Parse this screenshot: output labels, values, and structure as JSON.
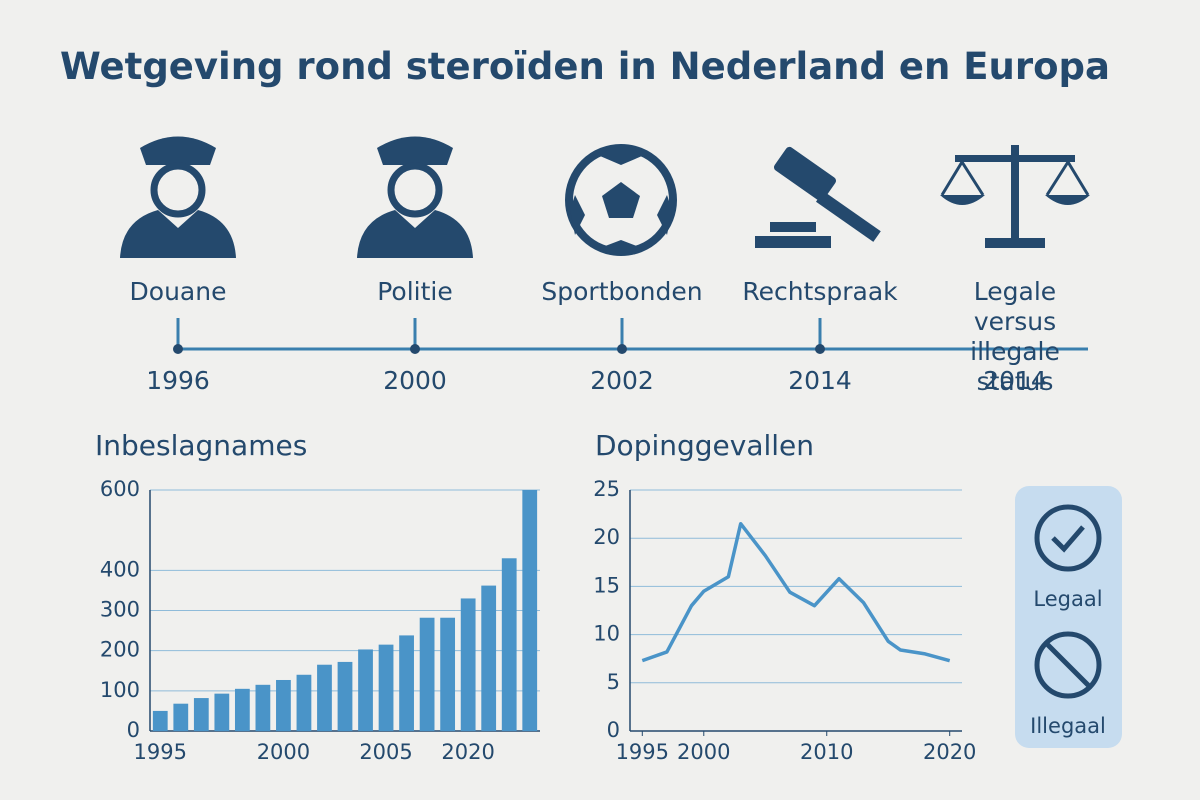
{
  "title": "Wetgeving rond steroïden in Nederland en Europa",
  "timeline": [
    {
      "label": "Douane",
      "year": "1996"
    },
    {
      "label": "Politie",
      "year": "2000"
    },
    {
      "label": "Sportbonden",
      "year": "2002"
    },
    {
      "label": "Rechtspraak",
      "year": "2014"
    },
    {
      "label": "Legale versus illegale status",
      "year": "2014"
    }
  ],
  "status_legend": [
    "Legaal",
    "Illegaal"
  ],
  "chart_data": [
    {
      "type": "bar",
      "title": "Inbeslagnames",
      "color": "#4a94c8",
      "categories": [
        "1995",
        null,
        null,
        null,
        null,
        null,
        "2000",
        null,
        null,
        null,
        null,
        "2005",
        null,
        null,
        null,
        "2020",
        null,
        null,
        null
      ],
      "values": [
        50,
        68,
        82,
        93,
        105,
        115,
        127,
        140,
        165,
        172,
        203,
        215,
        238,
        282,
        282,
        330,
        362,
        430,
        600
      ],
      "ylim": [
        0,
        600
      ],
      "yticks": [
        0,
        100,
        200,
        300,
        400,
        600
      ],
      "grid": true
    },
    {
      "type": "line",
      "title": "Dopinggevallen",
      "color": "#4a94c8",
      "x": [
        1995,
        1997,
        1999,
        2000,
        2002,
        2003,
        2005,
        2007,
        2009,
        2011,
        2013,
        2015,
        2016,
        2018,
        2020
      ],
      "values": [
        7.3,
        8.2,
        13,
        14.5,
        16,
        21.5,
        18.2,
        14.4,
        13,
        15.8,
        13.3,
        9.3,
        8.4,
        8,
        7.3
      ],
      "xlim": [
        1994,
        2021
      ],
      "xticks": [
        1995,
        2000,
        2010,
        2020
      ],
      "ylim": [
        0,
        25
      ],
      "yticks": [
        0,
        5,
        10,
        15,
        20,
        25
      ],
      "grid": true
    }
  ]
}
